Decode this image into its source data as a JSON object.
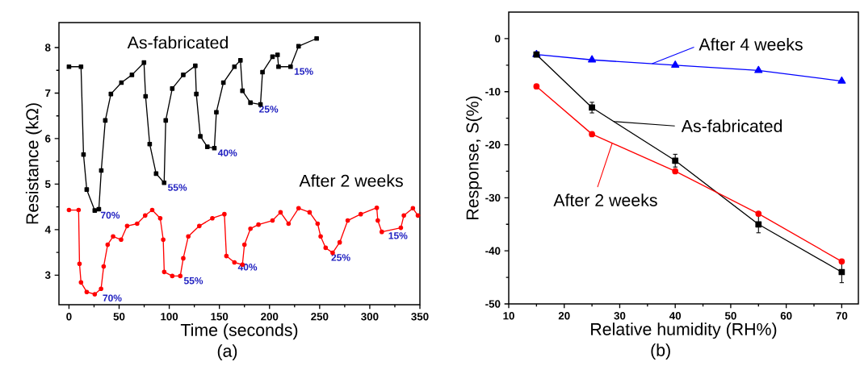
{
  "chart_data": [
    {
      "type": "line",
      "xlabel": "Time (seconds)",
      "ylabel": "Resistance (kΩ)",
      "xlim": [
        -10,
        350
      ],
      "ylim": [
        2.35,
        8.55
      ],
      "xticks": [
        0,
        50,
        100,
        150,
        200,
        250,
        300,
        350
      ],
      "yticks": [
        3,
        4,
        5,
        6,
        7,
        8
      ],
      "series": [
        {
          "name": "As-fabricated",
          "color": "#000000",
          "marker": "square",
          "x": [
            0,
            12,
            14.5,
            17.7,
            25.7,
            29.8,
            32.2,
            36.2,
            41.8,
            52.3,
            62.8,
            74.8,
            76.4,
            80.5,
            86.9,
            94.9,
            96.5,
            103,
            114,
            126,
            127,
            131,
            138,
            145,
            147,
            154,
            165,
            171,
            173,
            181,
            191,
            193,
            203,
            208,
            209,
            221,
            229,
            247
          ],
          "values": [
            7.58,
            7.58,
            5.65,
            4.88,
            4.42,
            4.45,
            5.3,
            6.4,
            6.98,
            7.23,
            7.4,
            7.67,
            6.93,
            5.88,
            5.23,
            5.03,
            6.4,
            7.1,
            7.4,
            7.6,
            6.98,
            6.05,
            5.82,
            5.79,
            6.58,
            7.23,
            7.58,
            7.72,
            7.05,
            6.79,
            6.75,
            7.46,
            7.8,
            7.84,
            7.58,
            7.58,
            8.03,
            8.2
          ]
        },
        {
          "name": "After 2 weeks",
          "color": "#ff0000",
          "marker": "circle",
          "x": [
            0,
            9.6,
            10.5,
            12,
            17.7,
            25.7,
            32,
            34.6,
            38.6,
            44,
            52,
            58,
            68,
            76,
            83,
            91,
            94,
            95,
            103,
            111,
            114,
            119,
            130,
            143,
            155,
            157,
            165,
            173,
            175,
            181,
            189,
            203,
            211,
            219,
            229,
            240,
            248,
            251,
            256,
            263,
            270,
            278,
            291,
            307,
            308,
            312,
            331,
            334,
            343,
            348
          ],
          "values": [
            4.43,
            4.43,
            3.25,
            2.84,
            2.63,
            2.58,
            2.7,
            3.19,
            3.67,
            3.85,
            3.78,
            4.08,
            4.13,
            4.31,
            4.43,
            4.25,
            3.78,
            3.07,
            2.98,
            2.98,
            3.37,
            3.85,
            4.08,
            4.25,
            4.34,
            3.42,
            3.28,
            3.23,
            3.67,
            4.02,
            4.11,
            4.2,
            4.38,
            4.13,
            4.47,
            4.38,
            4.13,
            3.85,
            3.6,
            3.49,
            3.72,
            4.2,
            4.34,
            4.48,
            4.2,
            3.95,
            4.04,
            4.31,
            4.47,
            4.31
          ]
        }
      ],
      "annotations": [
        {
          "text": "70%",
          "x": 28,
          "y": 4.42
        },
        {
          "text": "55%",
          "x": 95,
          "y": 5.03
        },
        {
          "text": "40%",
          "x": 145,
          "y": 5.79
        },
        {
          "text": "25%",
          "x": 186,
          "y": 6.75
        },
        {
          "text": "15%",
          "x": 221,
          "y": 7.58
        },
        {
          "text": "70%",
          "x": 30,
          "y": 2.6
        },
        {
          "text": "55%",
          "x": 111,
          "y": 2.98
        },
        {
          "text": "40%",
          "x": 165,
          "y": 3.28
        },
        {
          "text": "25%",
          "x": 258,
          "y": 3.49
        },
        {
          "text": "15%",
          "x": 315,
          "y": 3.97
        },
        "(a)"
      ]
    },
    {
      "type": "line",
      "xlabel": "Relative humidity (RH%)",
      "ylabel": "Response, S(%)",
      "xlim": [
        10,
        73
      ],
      "ylim": [
        -50,
        5
      ],
      "xticks": [
        10,
        20,
        30,
        40,
        50,
        60,
        70
      ],
      "yticks": [
        -50,
        -40,
        -30,
        -20,
        -10,
        0
      ],
      "x": [
        15,
        25,
        40,
        55,
        70
      ],
      "legend": "top right",
      "series": [
        {
          "name": "After 4 weeks",
          "color": "#0000ff",
          "marker": "triangle",
          "values": [
            -3,
            -4,
            -5,
            -6,
            -8
          ]
        },
        {
          "name": "As-fabricated",
          "color": "#000000",
          "marker": "square",
          "values": [
            -3,
            -13,
            -23,
            -35,
            -44
          ],
          "errors": [
            null,
            1,
            1.2,
            1.6,
            2
          ]
        },
        {
          "name": "After 2 weeks",
          "color": "#ff0000",
          "marker": "circle",
          "values": [
            -9,
            -18,
            -25,
            -33,
            -42
          ]
        }
      ],
      "annotations": [
        "(b)"
      ]
    }
  ]
}
